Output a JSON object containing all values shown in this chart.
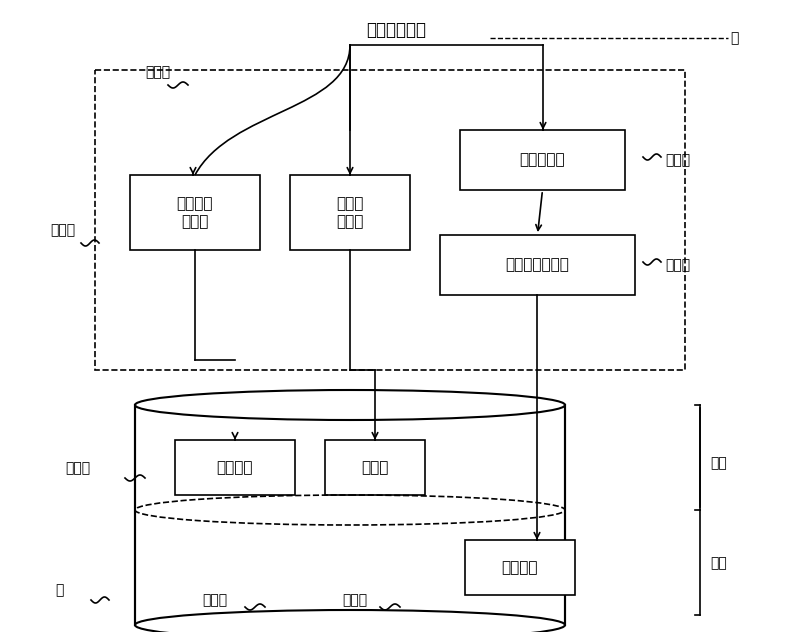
{
  "title": "文件擦除请求",
  "bg_color": "#ffffff",
  "label_1": "１０２",
  "label_2": "１０１",
  "label_3": "１０３",
  "label_4": "１０４",
  "label_5": "２０１",
  "label_6": "２",
  "label_7": "２０２",
  "label_8": "２０３",
  "label_9": "２ａ",
  "label_10": "２ｂ",
  "label_11": "１",
  "box1_text": "路径信息\n变更部",
  "box2_text": "文件名\n变更部",
  "box3_text": "任务监控部",
  "box4_text": "擦除任务执行部",
  "box5_text": "路径信息",
  "box6_text": "文件名",
  "box7_text": "真实数据",
  "line_color": "#000000",
  "font_size": 11,
  "font_size_label": 10
}
